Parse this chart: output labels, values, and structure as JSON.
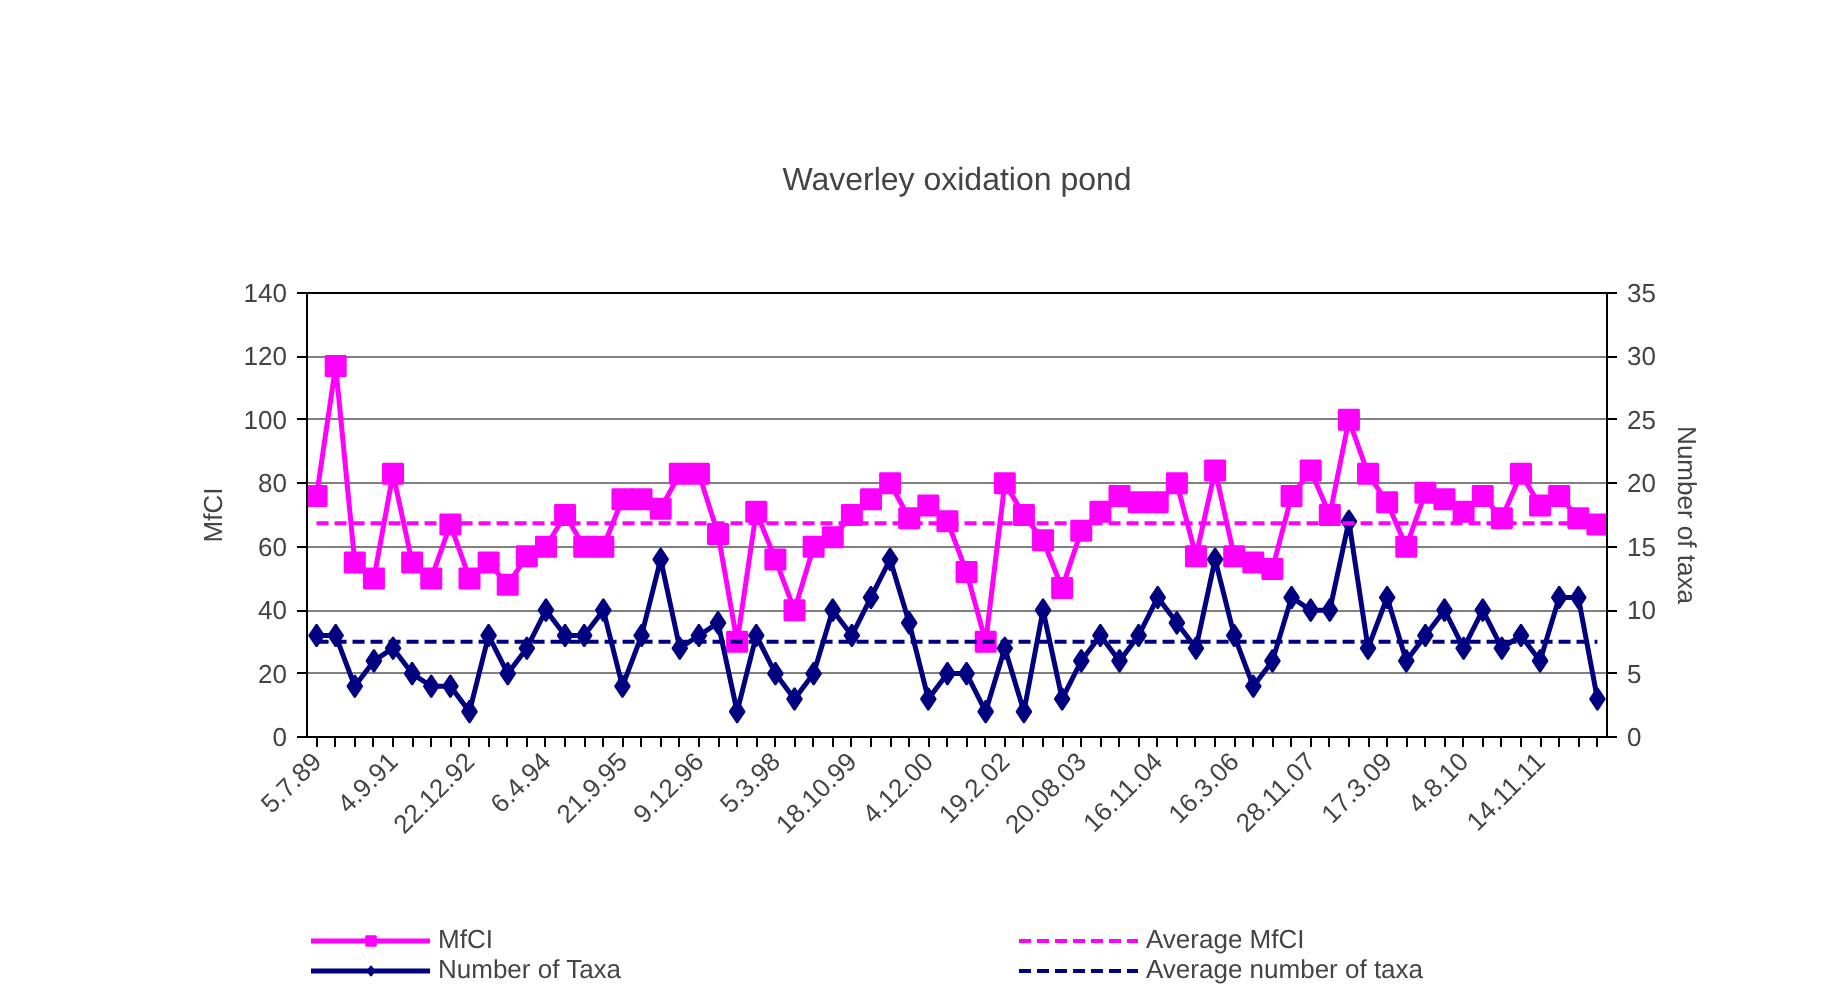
{
  "chart_data": {
    "type": "line",
    "title": "Waverley oxidation pond",
    "ylabel": "MfCI",
    "y2label": "Number of taxa",
    "categories": [
      "5.7.89",
      null,
      null,
      null,
      "4.9.91",
      null,
      null,
      null,
      "22.12.92",
      null,
      null,
      null,
      "6.4.94",
      null,
      null,
      null,
      "21.9.95",
      null,
      null,
      null,
      "9.12.96",
      null,
      null,
      null,
      "5.3.98",
      null,
      null,
      null,
      "18.10.99",
      null,
      null,
      null,
      "4.12.00",
      null,
      null,
      null,
      "19.2.02",
      null,
      null,
      null,
      "20.08.03",
      null,
      null,
      null,
      "16.11.04",
      null,
      null,
      null,
      "16.3.06",
      null,
      null,
      null,
      "28.11.07",
      null,
      null,
      null,
      "17.3.09",
      null,
      null,
      null,
      "4.8.10",
      null,
      null,
      null,
      "14.11.11",
      null,
      null,
      null
    ],
    "series": [
      {
        "name": "MfCI",
        "color": "#ff00ff",
        "marker": "square",
        "values": [
          76,
          117,
          55,
          50,
          83,
          55,
          50,
          67,
          50,
          55,
          48,
          57,
          60,
          70,
          60,
          60,
          75,
          75,
          72,
          83,
          83,
          64,
          30,
          71,
          56,
          40,
          60,
          63,
          70,
          75,
          80,
          69,
          73,
          68,
          52,
          30,
          80,
          70,
          62,
          47,
          65,
          71,
          76,
          74,
          74,
          80,
          57,
          84,
          57,
          55,
          53,
          76,
          84,
          70,
          100,
          83,
          74,
          60,
          77,
          75,
          71,
          76,
          69,
          83,
          73,
          76,
          69,
          67
        ]
      },
      {
        "name": "Number of Taxa",
        "color": "#000080",
        "marker": "diamond",
        "axis": "y2",
        "values": [
          8,
          8,
          4,
          6,
          7,
          5,
          4,
          4,
          2,
          8,
          5,
          7,
          10,
          8,
          8,
          10,
          4,
          8,
          14,
          7,
          8,
          9,
          2,
          8,
          5,
          3,
          5,
          10,
          8,
          11,
          14,
          9,
          3,
          5,
          5,
          2,
          7,
          2,
          10,
          3,
          6,
          8,
          6,
          8,
          11,
          9,
          7,
          14,
          8,
          4,
          6,
          11,
          10,
          10,
          17,
          7,
          11,
          6,
          8,
          10,
          7,
          10,
          7,
          8,
          6,
          11,
          11,
          3
        ]
      }
    ],
    "ref_lines": [
      {
        "axis": "y",
        "value": 67.4,
        "label": "Average MfCI",
        "color": "#ff00ff",
        "line_style": "dashed"
      },
      {
        "axis": "y2",
        "value": 7.5,
        "label": "Average number of taxa",
        "color": "#000080",
        "line_style": "dashed"
      }
    ],
    "ylim": [
      0,
      140
    ],
    "yticks": [
      0,
      20,
      40,
      60,
      80,
      100,
      120,
      140
    ],
    "y2lim": [
      0,
      35
    ],
    "y2ticks": [
      0,
      5,
      10,
      15,
      20,
      25,
      30,
      35
    ],
    "grid": "y",
    "legend": "bottom",
    "line_style": "solid"
  }
}
